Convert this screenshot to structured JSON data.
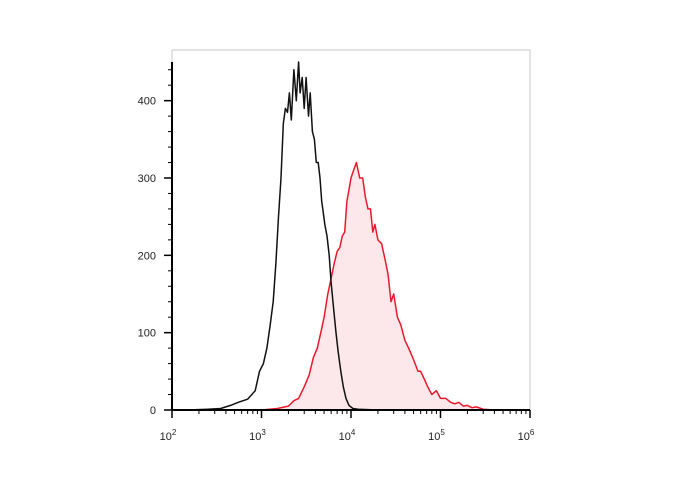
{
  "chart_data": {
    "type": "area",
    "title": "",
    "xlabel": "",
    "ylabel": "",
    "x_scale": "log",
    "xlim": [
      100,
      1000000
    ],
    "ylim": [
      0,
      450
    ],
    "grid": false,
    "legend": "none",
    "x_ticks": [
      {
        "value": 100,
        "base": "10",
        "exp": "2"
      },
      {
        "value": 1000,
        "base": "10",
        "exp": "3"
      },
      {
        "value": 10000,
        "base": "10",
        "exp": "4"
      },
      {
        "value": 100000,
        "base": "10",
        "exp": "5"
      },
      {
        "value": 1000000,
        "base": "10",
        "exp": "6"
      }
    ],
    "y_ticks": [
      "0",
      "100",
      "200",
      "300",
      "400"
    ],
    "series": [
      {
        "color": "#111111",
        "fill": "none",
        "points": [
          [
            150,
            0
          ],
          [
            250,
            1
          ],
          [
            350,
            2
          ],
          [
            450,
            6
          ],
          [
            550,
            10
          ],
          [
            700,
            14
          ],
          [
            850,
            25
          ],
          [
            950,
            50
          ],
          [
            1050,
            60
          ],
          [
            1150,
            80
          ],
          [
            1250,
            110
          ],
          [
            1350,
            140
          ],
          [
            1450,
            190
          ],
          [
            1550,
            250
          ],
          [
            1650,
            300
          ],
          [
            1750,
            370
          ],
          [
            1850,
            390
          ],
          [
            1950,
            385
          ],
          [
            2050,
            410
          ],
          [
            2150,
            375
          ],
          [
            2300,
            440
          ],
          [
            2450,
            400
          ],
          [
            2600,
            450
          ],
          [
            2700,
            410
          ],
          [
            2850,
            430
          ],
          [
            3000,
            390
          ],
          [
            3150,
            430
          ],
          [
            3350,
            380
          ],
          [
            3500,
            410
          ],
          [
            3700,
            360
          ],
          [
            3900,
            350
          ],
          [
            4100,
            320
          ],
          [
            4300,
            320
          ],
          [
            4500,
            300
          ],
          [
            4700,
            270
          ],
          [
            4900,
            255
          ],
          [
            5100,
            240
          ],
          [
            5400,
            225
          ],
          [
            5700,
            200
          ],
          [
            6000,
            165
          ],
          [
            6400,
            130
          ],
          [
            6800,
            100
          ],
          [
            7200,
            75
          ],
          [
            7700,
            50
          ],
          [
            8200,
            30
          ],
          [
            8800,
            15
          ],
          [
            9500,
            6
          ],
          [
            10500,
            2
          ],
          [
            12000,
            1
          ],
          [
            20000,
            0
          ],
          [
            100000,
            0
          ],
          [
            1000000,
            0
          ]
        ]
      },
      {
        "color": "#e8192c",
        "fill": "#fce8ea",
        "points": [
          [
            1000,
            0
          ],
          [
            1500,
            2
          ],
          [
            2000,
            5
          ],
          [
            2300,
            12
          ],
          [
            2600,
            15
          ],
          [
            3000,
            30
          ],
          [
            3400,
            45
          ],
          [
            3800,
            68
          ],
          [
            4200,
            80
          ],
          [
            4600,
            100
          ],
          [
            5000,
            120
          ],
          [
            5500,
            150
          ],
          [
            6000,
            170
          ],
          [
            6500,
            190
          ],
          [
            7000,
            205
          ],
          [
            7500,
            210
          ],
          [
            8000,
            225
          ],
          [
            8500,
            230
          ],
          [
            9000,
            270
          ],
          [
            9500,
            285
          ],
          [
            10000,
            300
          ],
          [
            10700,
            310
          ],
          [
            11500,
            320
          ],
          [
            12500,
            300
          ],
          [
            13500,
            300
          ],
          [
            14500,
            275
          ],
          [
            15500,
            260
          ],
          [
            16500,
            260
          ],
          [
            17500,
            230
          ],
          [
            18500,
            240
          ],
          [
            20000,
            220
          ],
          [
            22000,
            215
          ],
          [
            24000,
            195
          ],
          [
            26000,
            175
          ],
          [
            28000,
            140
          ],
          [
            30000,
            150
          ],
          [
            33000,
            120
          ],
          [
            36000,
            110
          ],
          [
            40000,
            90
          ],
          [
            44000,
            80
          ],
          [
            48000,
            70
          ],
          [
            52000,
            60
          ],
          [
            56000,
            50
          ],
          [
            60000,
            50
          ],
          [
            66000,
            40
          ],
          [
            72000,
            30
          ],
          [
            80000,
            20
          ],
          [
            90000,
            25
          ],
          [
            100000,
            15
          ],
          [
            115000,
            15
          ],
          [
            130000,
            10
          ],
          [
            145000,
            8
          ],
          [
            160000,
            10
          ],
          [
            180000,
            5
          ],
          [
            200000,
            6
          ],
          [
            225000,
            3
          ],
          [
            250000,
            4
          ],
          [
            300000,
            1
          ],
          [
            400000,
            0
          ],
          [
            1000000,
            0
          ]
        ]
      }
    ]
  }
}
